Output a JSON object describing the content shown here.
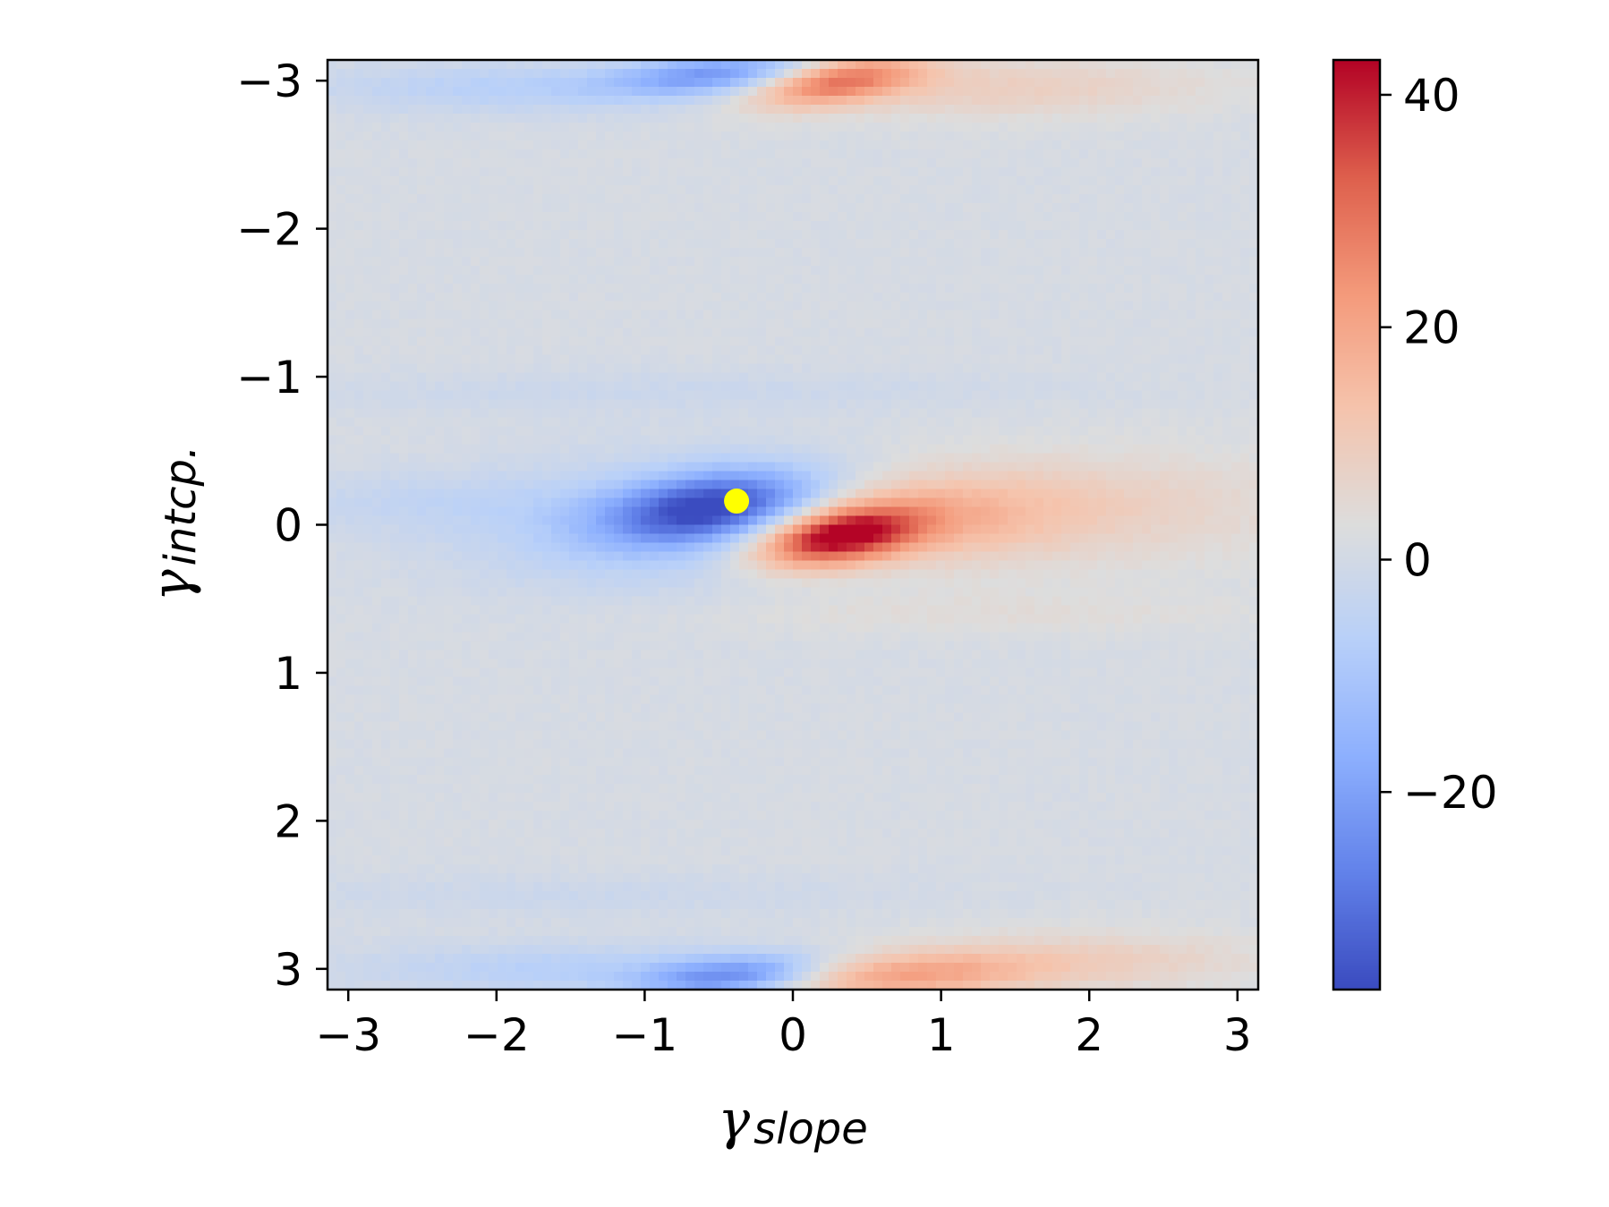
{
  "chart_data": {
    "type": "heatmap",
    "title": "",
    "xlabel": {
      "symbol": "γ",
      "subscript": "slope"
    },
    "ylabel": {
      "symbol": "γ",
      "subscript": "intcp."
    },
    "xlim": [
      -3.14,
      3.14
    ],
    "ylim": [
      -3.14,
      3.14
    ],
    "y_inverted": true,
    "x_ticks": [
      -3,
      -2,
      -1,
      0,
      1,
      2,
      3
    ],
    "x_tick_labels": [
      "−3",
      "−2",
      "−1",
      "0",
      "1",
      "2",
      "3"
    ],
    "y_ticks": [
      -3,
      -2,
      -1,
      0,
      1,
      2,
      3
    ],
    "y_tick_labels": [
      "−3",
      "−2",
      "−1",
      "0",
      "1",
      "2",
      "3"
    ],
    "colormap": "coolwarm",
    "grid": false,
    "colorbar": {
      "vmin": -37,
      "vmax": 43,
      "ticks": [
        40,
        20,
        0,
        -20
      ],
      "tick_labels": [
        "40",
        "20",
        "0",
        "−20"
      ]
    },
    "features": [
      {
        "kind": "negative_lobe",
        "x": -0.55,
        "y": -0.1,
        "peak": -34
      },
      {
        "kind": "positive_lobe",
        "x": 0.25,
        "y": 0.1,
        "peak": 42
      },
      {
        "kind": "negative_lobe",
        "x": -0.45,
        "y": -3.05,
        "peak": -22
      },
      {
        "kind": "positive_lobe",
        "x": 0.35,
        "y": -3.0,
        "peak": 28
      },
      {
        "kind": "negative_lobe",
        "x": -0.45,
        "y": 3.05,
        "peak": -24
      },
      {
        "kind": "positive_lobe",
        "x": 0.6,
        "y": 3.05,
        "peak": 18
      }
    ],
    "marker": {
      "x": -0.38,
      "y": -0.16,
      "color": "#ffff00"
    }
  }
}
